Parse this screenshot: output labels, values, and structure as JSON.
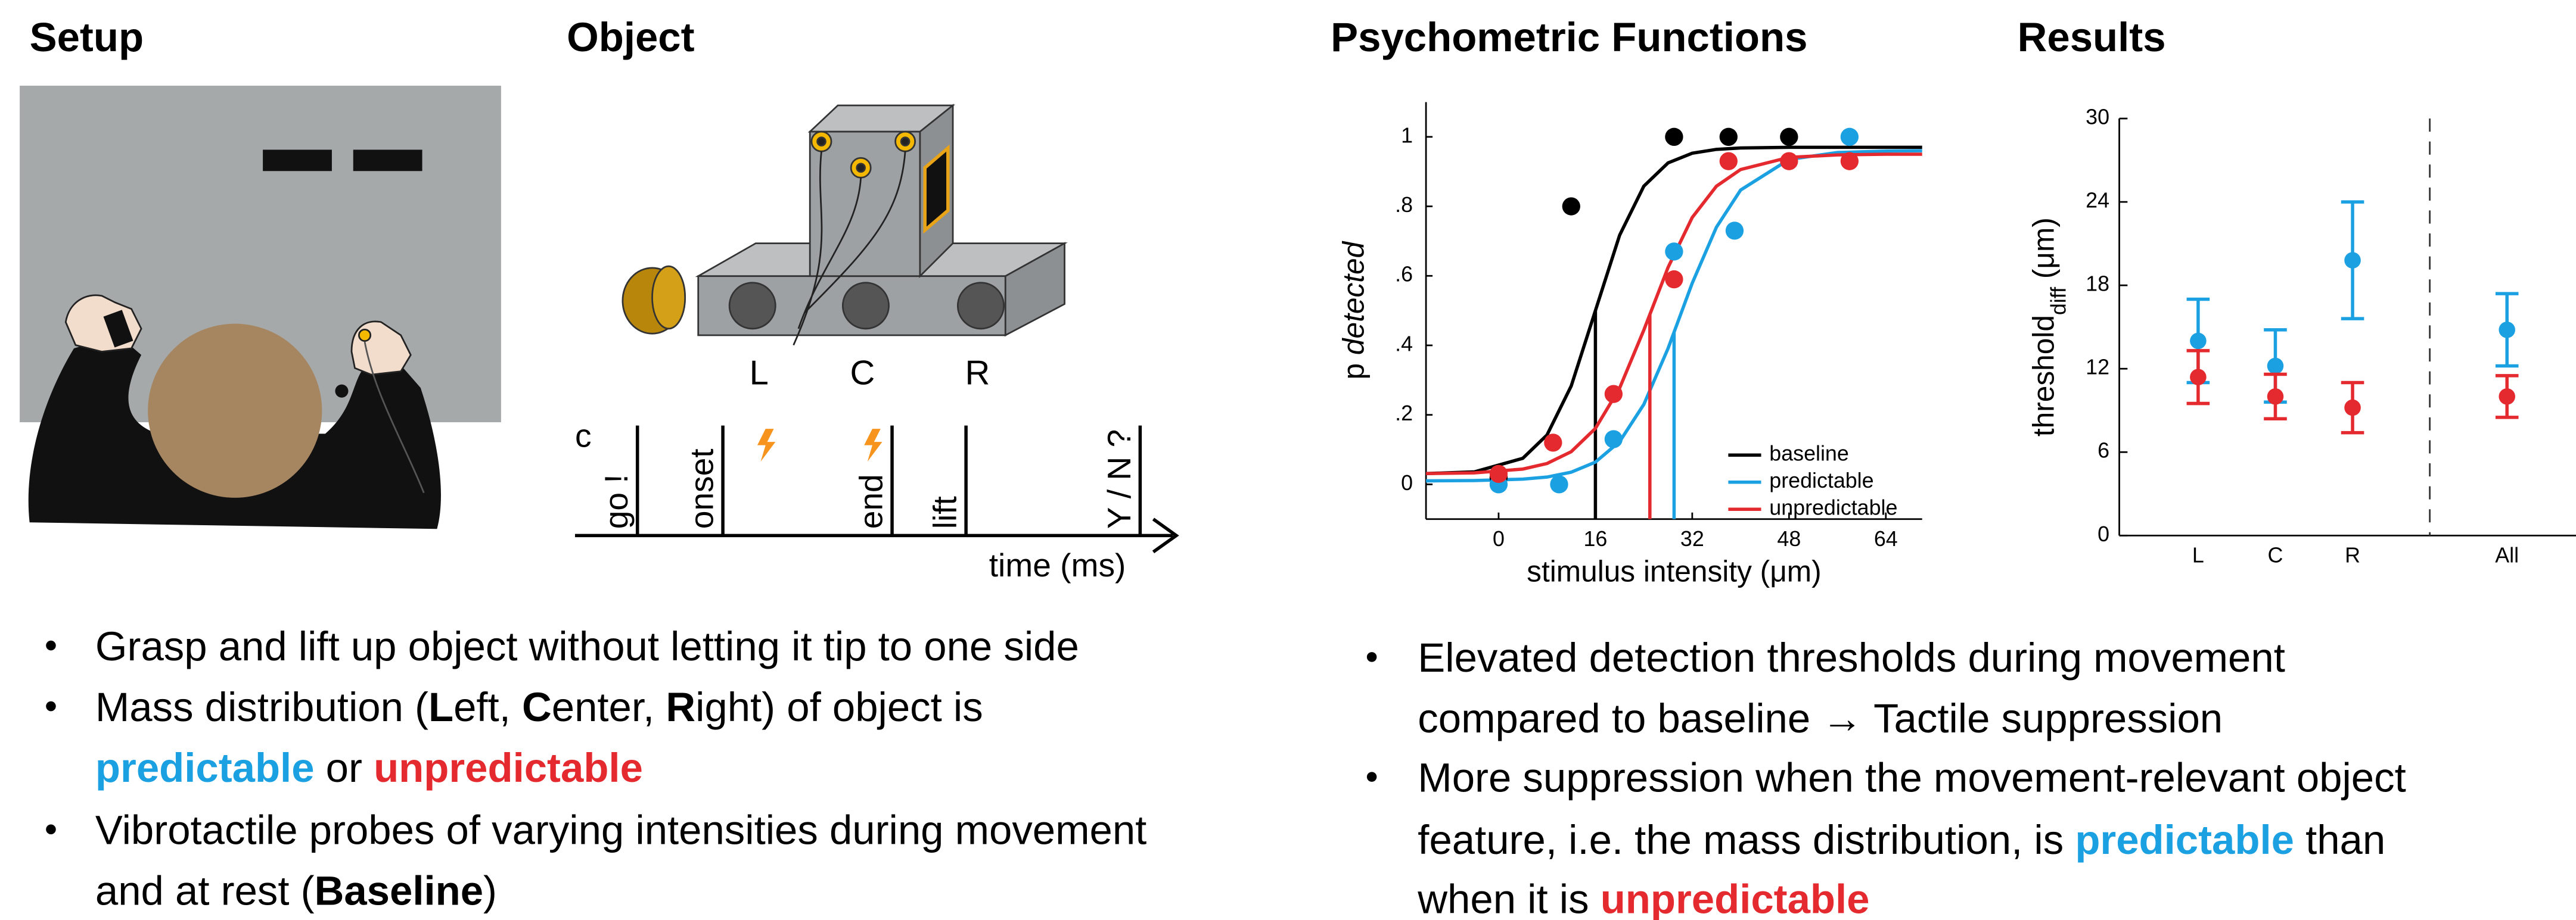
{
  "sections": [
    "Setup",
    "Object"
  ],
  "object": {
    "positions": [
      "L",
      "C",
      "R"
    ],
    "condition_label": "c",
    "events": [
      "go !",
      "onset",
      "end",
      "lift",
      "Y / N ?"
    ],
    "time_label": "time (ms)"
  },
  "chart_data": [
    {
      "type": "scatter",
      "title": "Psychometric Functions",
      "xlabel": "stimulus intensity (μm)",
      "ylabel": [
        "p ",
        "detected"
      ],
      "xlim": [
        -12,
        70
      ],
      "ylim": [
        -0.1,
        1.1
      ],
      "xticks": [
        0,
        16,
        32,
        48,
        64
      ],
      "yticks": [
        0,
        {
          "value": 0.2,
          "label": ".2"
        },
        {
          "value": 0.4,
          "label": ".4"
        },
        {
          "value": 0.6,
          "label": ".6"
        },
        {
          "value": 0.8,
          "label": ".8"
        },
        1
      ],
      "legend": "lower right",
      "fit_x": [
        -12,
        -4,
        4,
        8,
        12,
        16,
        20,
        24,
        28,
        32,
        36,
        40,
        48,
        56,
        64,
        70
      ],
      "series": [
        {
          "name": "baseline",
          "color": "#000000",
          "x": [
            0,
            12,
            29,
            38,
            48
          ],
          "values": [
            0.02,
            0.8,
            1,
            1,
            1
          ],
          "fit": [
            0.031,
            0.036,
            0.075,
            0.142,
            0.283,
            0.5,
            0.717,
            0.858,
            0.925,
            0.953,
            0.964,
            0.968,
            0.97,
            0.97,
            0.97,
            0.97
          ],
          "threshold": 16
        },
        {
          "name": "predictable",
          "color": "#1ba1e2",
          "x": [
            0,
            10,
            19,
            29,
            39,
            58
          ],
          "values": [
            0,
            0,
            0.13,
            0.67,
            0.73,
            1
          ],
          "fit": [
            0.01,
            0.011,
            0.015,
            0.021,
            0.035,
            0.064,
            0.123,
            0.23,
            0.391,
            0.579,
            0.74,
            0.847,
            0.935,
            0.955,
            0.959,
            0.96
          ],
          "threshold": 29
        },
        {
          "name": "unpredictable",
          "color": "#e42a2f",
          "x": [
            0,
            9,
            19,
            29,
            38,
            48,
            58
          ],
          "values": [
            0.03,
            0.12,
            0.26,
            0.59,
            0.93,
            0.93,
            0.93
          ],
          "fit": [
            0.031,
            0.033,
            0.044,
            0.06,
            0.094,
            0.161,
            0.277,
            0.444,
            0.624,
            0.768,
            0.858,
            0.906,
            0.941,
            0.948,
            0.95,
            0.95
          ],
          "threshold": 25
        }
      ]
    },
    {
      "type": "errorbar",
      "title": "Results",
      "ylabel": [
        "threshold",
        "diff",
        " (μm)"
      ],
      "categories": [
        "L",
        "C",
        "R",
        "All"
      ],
      "ylim": [
        0,
        30
      ],
      "yticks": [
        0,
        6,
        12,
        18,
        24,
        30
      ],
      "series": [
        {
          "color": "#1ba1e2",
          "values": [
            14,
            12.2,
            19.8,
            14.8
          ],
          "errors": [
            3,
            2.6,
            4.2,
            2.6
          ]
        },
        {
          "color": "#e42a2f",
          "values": [
            11.4,
            10,
            9.2,
            10
          ],
          "errors": [
            1.9,
            1.6,
            1.8,
            1.5
          ]
        }
      ]
    }
  ],
  "bullets": {
    "left": [
      [
        [
          "Grasp and lift up object without letting it tip to one side"
        ]
      ],
      [
        [
          "Mass distribution (",
          "L",
          "eft, ",
          "C",
          "enter, ",
          "R",
          "ight) of object is"
        ],
        [
          "predictable",
          " or ",
          "unpredictable"
        ]
      ],
      [
        [
          "Vibrotactile probes of varying intensities during movement"
        ],
        [
          "and at rest (",
          "Baseline",
          ")"
        ]
      ]
    ],
    "right": [
      [
        [
          "Elevated detection thresholds during movement"
        ],
        [
          "compared to baseline → Tactile suppression"
        ]
      ],
      [
        [
          "More suppression when the movement-relevant object"
        ],
        [
          "feature, i.e. the mass distribution, is ",
          "predictable",
          " than"
        ],
        [
          "when it is ",
          "unpredictable"
        ]
      ]
    ]
  }
}
